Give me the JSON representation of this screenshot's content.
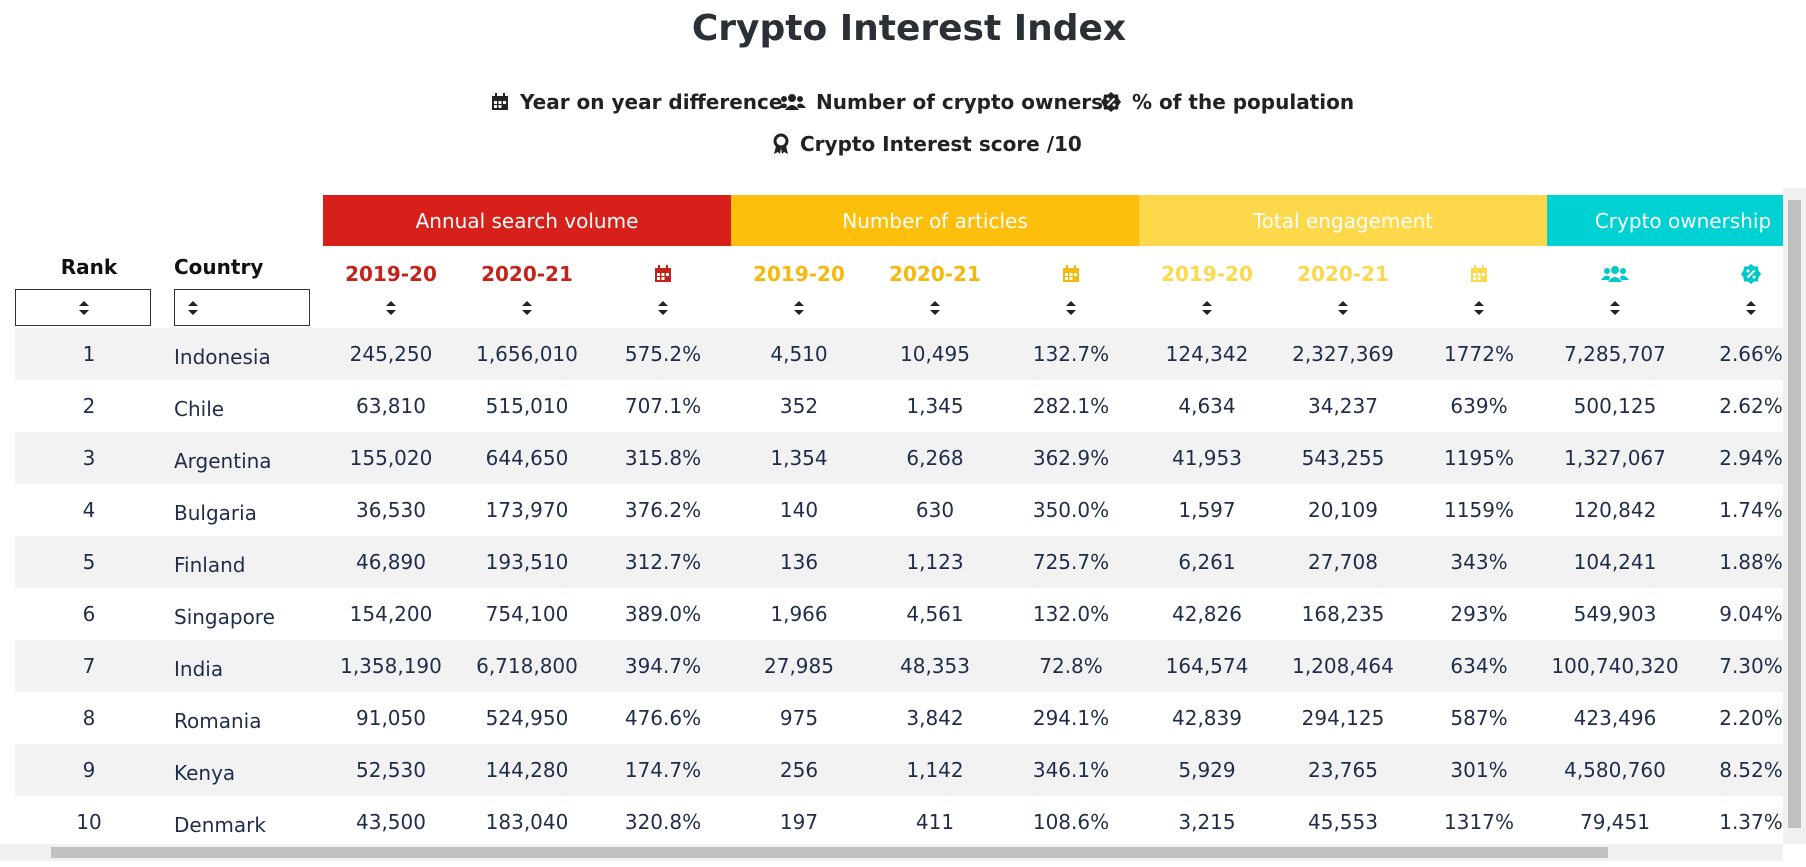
{
  "title": "Crypto Interest Index",
  "legend": [
    "Year on year difference",
    "Number of crypto owners",
    "% of the population",
    "Crypto Interest score /10"
  ],
  "table": {
    "rank_header": "Rank",
    "country_header": "Country",
    "groups": [
      {
        "name": "Annual search volume",
        "color": "#d7201a",
        "text_color": "#c4231b",
        "columns": [
          "2019-20",
          "2020-21"
        ]
      },
      {
        "name": "Number of articles",
        "color": "#fdbf0c",
        "text_color": "#f5b90d",
        "columns": [
          "2019-20",
          "2020-21"
        ]
      },
      {
        "name": "Total engagement",
        "color": "#fdd84a",
        "text_color": "#fdd84a",
        "columns": [
          "2019-20",
          "2020-21"
        ]
      },
      {
        "name": "Crypto ownership",
        "color": "#00d2d3",
        "text_color": "#00c8c9",
        "columns": []
      }
    ],
    "rows": [
      [
        "1",
        "Indonesia",
        "245,250",
        "1,656,010",
        "575.2%",
        "4,510",
        "10,495",
        "132.7%",
        "124,342",
        "2,327,369",
        "1772%",
        "7,285,707",
        "2.66%"
      ],
      [
        "2",
        "Chile",
        "63,810",
        "515,010",
        "707.1%",
        "352",
        "1,345",
        "282.1%",
        "4,634",
        "34,237",
        "639%",
        "500,125",
        "2.62%"
      ],
      [
        "3",
        "Argentina",
        "155,020",
        "644,650",
        "315.8%",
        "1,354",
        "6,268",
        "362.9%",
        "41,953",
        "543,255",
        "1195%",
        "1,327,067",
        "2.94%"
      ],
      [
        "4",
        "Bulgaria",
        "36,530",
        "173,970",
        "376.2%",
        "140",
        "630",
        "350.0%",
        "1,597",
        "20,109",
        "1159%",
        "120,842",
        "1.74%"
      ],
      [
        "5",
        "Finland",
        "46,890",
        "193,510",
        "312.7%",
        "136",
        "1,123",
        "725.7%",
        "6,261",
        "27,708",
        "343%",
        "104,241",
        "1.88%"
      ],
      [
        "6",
        "Singapore",
        "154,200",
        "754,100",
        "389.0%",
        "1,966",
        "4,561",
        "132.0%",
        "42,826",
        "168,235",
        "293%",
        "549,903",
        "9.04%"
      ],
      [
        "7",
        "India",
        "1,358,190",
        "6,718,800",
        "394.7%",
        "27,985",
        "48,353",
        "72.8%",
        "164,574",
        "1,208,464",
        "634%",
        "100,740,320",
        "7.30%"
      ],
      [
        "8",
        "Romania",
        "91,050",
        "524,950",
        "476.6%",
        "975",
        "3,842",
        "294.1%",
        "42,839",
        "294,125",
        "587%",
        "423,496",
        "2.20%"
      ],
      [
        "9",
        "Kenya",
        "52,530",
        "144,280",
        "174.7%",
        "256",
        "1,142",
        "346.1%",
        "5,929",
        "23,765",
        "301%",
        "4,580,760",
        "8.52%"
      ],
      [
        "10",
        "Denmark",
        "43,500",
        "183,040",
        "320.8%",
        "197",
        "411",
        "108.6%",
        "3,215",
        "45,553",
        "1317%",
        "79,451",
        "1.37%"
      ]
    ]
  }
}
